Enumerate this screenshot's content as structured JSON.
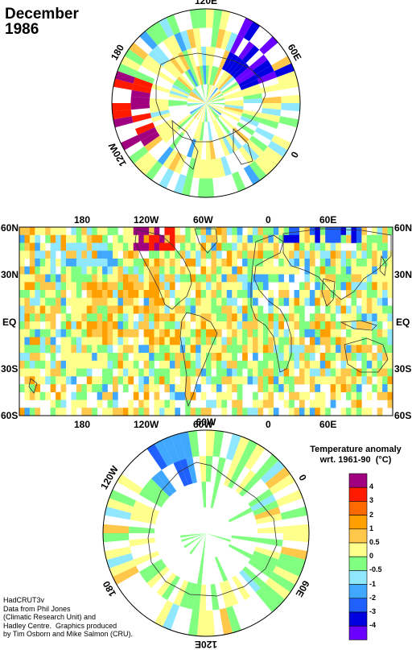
{
  "title": "December\n1986",
  "north_polar": {
    "labels": [
      {
        "text": "120E",
        "angle": 0
      },
      {
        "text": "60E",
        "angle": 60
      },
      {
        "text": "0",
        "angle": 120
      },
      {
        "text": "120W",
        "angle": 240
      },
      {
        "text": "180",
        "angle": 300
      }
    ]
  },
  "main_map": {
    "top_lon_labels": [
      "180",
      "120W",
      "60W",
      "0",
      "60E"
    ],
    "bottom_lon_labels": [
      "180",
      "120W",
      "60W",
      "0",
      "60E"
    ],
    "left_lat_labels": [
      "60N",
      "30N",
      "EQ",
      "30S",
      "60S"
    ],
    "right_lat_labels": [
      "60N",
      "30N",
      "EQ",
      "30S",
      "60S"
    ]
  },
  "south_polar": {
    "labels": [
      {
        "text": "60W",
        "angle": 0
      },
      {
        "text": "0",
        "angle": 60
      },
      {
        "text": "60E",
        "angle": 120
      },
      {
        "text": "120E",
        "angle": 180
      },
      {
        "text": "180",
        "angle": 240
      },
      {
        "text": "120W",
        "angle": 300
      }
    ]
  },
  "legend": {
    "title": "Temperature anomaly\nwrt. 1961-90  (°C)",
    "colors": [
      "#a0007f",
      "#ff1a00",
      "#ff6a00",
      "#ffa000",
      "#ffc84a",
      "#ffff8c",
      "#80ff80",
      "#90e8ff",
      "#40a8ff",
      "#2060ff",
      "#0000e0",
      "#6a00ff"
    ],
    "labels": [
      "4",
      "3",
      "2",
      "1",
      "0.5",
      "0",
      "-0.5",
      "-1",
      "-2",
      "-3",
      "-4"
    ]
  },
  "credits": "HadCRUT3v\nData from Phil Jones\n(Climatic Research Unit) and\nHadley Centre.  Graphics produced\nby Tim Osborn and Mike Salmon (CRU)."
}
